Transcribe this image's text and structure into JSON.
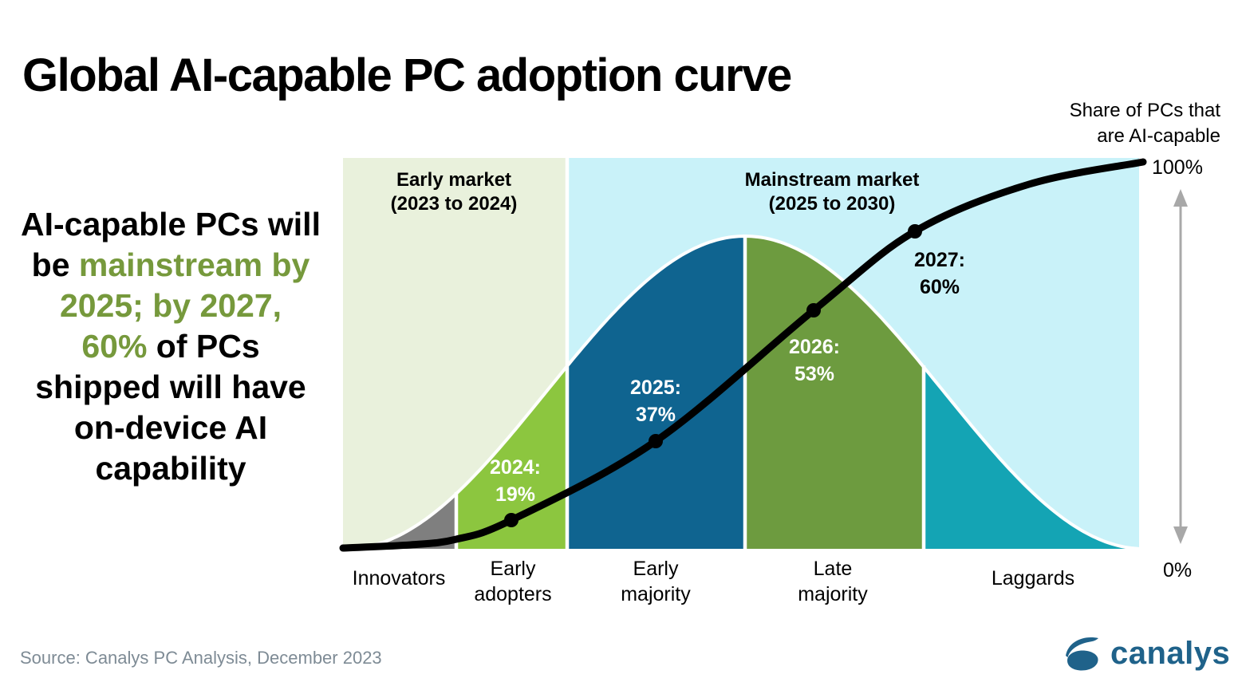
{
  "page": {
    "title": "Global AI-capable PC adoption curve",
    "source": "Source: Canalys PC Analysis, December 2023",
    "brand": "canalys"
  },
  "insight": {
    "full_text": "AI-capable PCs will be mainstream by 2025; by 2027, 60% of PCs shipped will have on-device AI capability",
    "lines": [
      {
        "a": "AI-capable PCs will",
        "ac": "ink",
        "b": "",
        "bc": "ink"
      },
      {
        "a": "be ",
        "ac": "ink",
        "b": "mainstream by",
        "bc": "green"
      },
      {
        "a": "2025; by 2027,",
        "ac": "green",
        "b": "",
        "bc": "ink"
      },
      {
        "a": "60% ",
        "ac": "green",
        "b": "of PCs",
        "bc": "ink"
      },
      {
        "a": "shipped will have",
        "ac": "ink",
        "b": "",
        "bc": "ink"
      },
      {
        "a": "on-device AI",
        "ac": "ink",
        "b": "",
        "bc": "ink"
      },
      {
        "a": "capability",
        "ac": "ink",
        "b": "",
        "bc": "ink"
      }
    ]
  },
  "markets": [
    {
      "label": "Early market",
      "range_display": "(2023 to 2024)"
    },
    {
      "label": "Mainstream market",
      "range_display": "(2025 to 2030)"
    }
  ],
  "stages": [
    {
      "label": "Innovators"
    },
    {
      "label": "Early\nadopters"
    },
    {
      "label": "Early\nmajority"
    },
    {
      "label": "Late\nmajority"
    },
    {
      "label": "Laggards"
    }
  ],
  "annotations": [
    {
      "year": "2024:",
      "value": "19%"
    },
    {
      "year": "2025:",
      "value": "37%"
    },
    {
      "year": "2026:",
      "value": "53%"
    },
    {
      "year": "2027:",
      "value": "60%"
    }
  ],
  "axis": {
    "right_label": "Share of PCs that\nare AI-capable",
    "max": "100%",
    "min": "0%"
  },
  "colors": {
    "bg_early_market": "#E9F1DC",
    "bg_mainstream_market": "#C9F2F9",
    "innovators": "#7F7F7F",
    "early_adopters": "#8CC63F",
    "early_majority": "#0F6490",
    "late_majority": "#6D9B3F",
    "laggards": "#14A4B4",
    "s_curve": "#000000",
    "separator": "#FFFFFF",
    "accent_green_text": "#76993C",
    "arrow_gray": "#A8A8A8",
    "logo_blue": "#1F628A",
    "source_gray": "#7E8B95"
  },
  "chart_data": {
    "type": "line",
    "subtype": "cumulative S-curve over adoption bell-curve segments",
    "title": "Global AI-capable PC adoption curve",
    "x": [
      2024,
      2025,
      2026,
      2027
    ],
    "series": [
      {
        "name": "Share of PCs that are AI-capable",
        "values": [
          19,
          37,
          53,
          60
        ],
        "unit": "%"
      }
    ],
    "segments": [
      {
        "label": "Innovators",
        "color": "#7F7F7F"
      },
      {
        "label": "Early adopters",
        "color": "#8CC63F"
      },
      {
        "label": "Early majority",
        "color": "#0F6490"
      },
      {
        "label": "Late majority",
        "color": "#6D9B3F"
      },
      {
        "label": "Laggards",
        "color": "#14A4B4"
      }
    ],
    "markets": [
      {
        "label": "Early market",
        "range": "2023 to 2024"
      },
      {
        "label": "Mainstream market",
        "range": "2025 to 2030"
      }
    ],
    "y_axis": {
      "label": "Share of PCs that are AI-capable",
      "min": "0%",
      "max": "100%"
    },
    "annotations": [
      "2024: 19%",
      "2025: 37%",
      "2026: 53%",
      "2027: 60%"
    ],
    "legend_position": "none",
    "grid": false
  }
}
